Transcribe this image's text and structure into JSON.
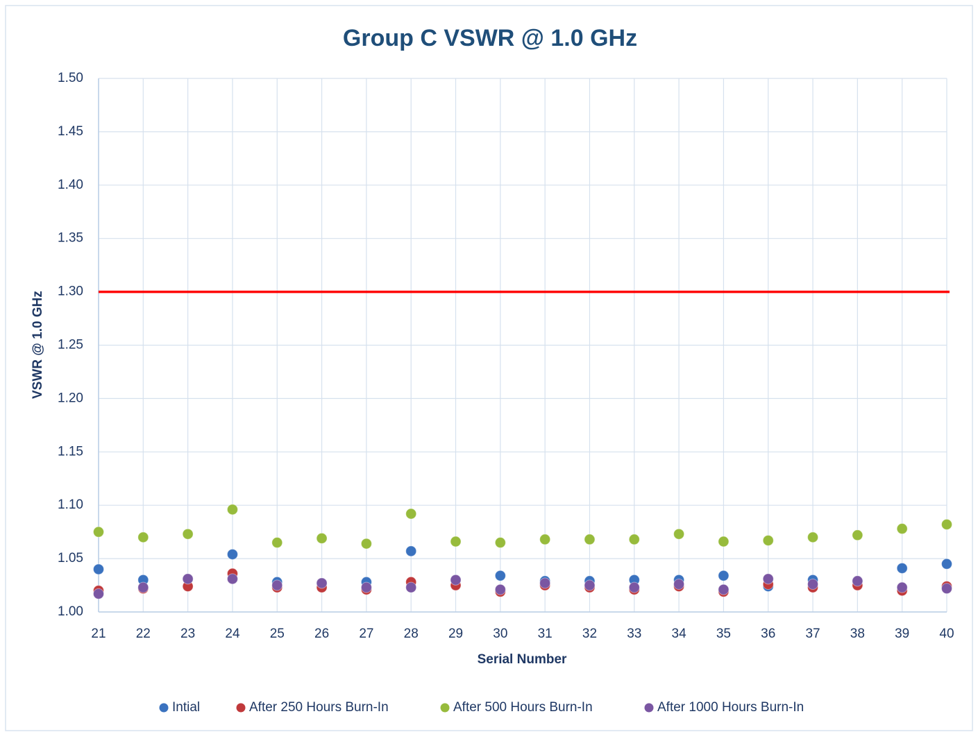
{
  "chart_data": {
    "type": "scatter",
    "title": "Group C VSWR @ 1.0 GHz",
    "x_label": "Serial Number",
    "y_label": "VSWR @ 1.0 GHz",
    "x": [
      21,
      22,
      23,
      24,
      25,
      26,
      27,
      28,
      29,
      30,
      31,
      32,
      33,
      34,
      35,
      36,
      37,
      38,
      39,
      40
    ],
    "xlim": [
      21,
      40
    ],
    "xticks": [
      21,
      22,
      23,
      24,
      25,
      26,
      27,
      28,
      29,
      30,
      31,
      32,
      33,
      34,
      35,
      36,
      37,
      38,
      39,
      40
    ],
    "ylim": [
      1.0,
      1.5
    ],
    "yticks": [
      {
        "value": 1.0,
        "label": "1.00"
      },
      {
        "value": 1.05,
        "label": "1.05"
      },
      {
        "value": 1.1,
        "label": "1.10"
      },
      {
        "value": 1.15,
        "label": "1.15"
      },
      {
        "value": 1.2,
        "label": "1.20"
      },
      {
        "value": 1.25,
        "label": "1.25"
      },
      {
        "value": 1.3,
        "label": "1.30"
      },
      {
        "value": 1.35,
        "label": "1.35"
      },
      {
        "value": 1.4,
        "label": "1.40"
      },
      {
        "value": 1.45,
        "label": "1.45"
      },
      {
        "value": 1.5,
        "label": "1.50"
      }
    ],
    "grid": true,
    "legend": "bottom",
    "threshold": {
      "value": 1.3,
      "color": "#ff0000"
    },
    "series": [
      {
        "name": "Intial",
        "color": "#3a72bf",
        "values": [
          1.04,
          1.03,
          1.031,
          1.054,
          1.028,
          1.027,
          1.028,
          1.057,
          1.03,
          1.034,
          1.029,
          1.029,
          1.03,
          1.03,
          1.034,
          1.024,
          1.03,
          1.029,
          1.041,
          1.045
        ]
      },
      {
        "name": "After 250 Hours Burn-In",
        "color": "#c0393b",
        "values": [
          1.02,
          1.022,
          1.024,
          1.036,
          1.023,
          1.023,
          1.021,
          1.028,
          1.025,
          1.019,
          1.025,
          1.023,
          1.021,
          1.024,
          1.019,
          1.026,
          1.023,
          1.025,
          1.02,
          1.024
        ]
      },
      {
        "name": "After 500 Hours Burn-In",
        "color": "#97bb3c",
        "values": [
          1.075,
          1.07,
          1.073,
          1.096,
          1.065,
          1.069,
          1.064,
          1.092,
          1.066,
          1.065,
          1.068,
          1.068,
          1.068,
          1.073,
          1.066,
          1.067,
          1.07,
          1.072,
          1.078,
          1.082
        ]
      },
      {
        "name": "After 1000 Hours Burn-In",
        "color": "#7a56a2",
        "values": [
          1.017,
          1.023,
          1.031,
          1.031,
          1.025,
          1.027,
          1.023,
          1.023,
          1.03,
          1.021,
          1.027,
          1.025,
          1.023,
          1.026,
          1.021,
          1.031,
          1.026,
          1.029,
          1.023,
          1.022
        ]
      }
    ]
  }
}
